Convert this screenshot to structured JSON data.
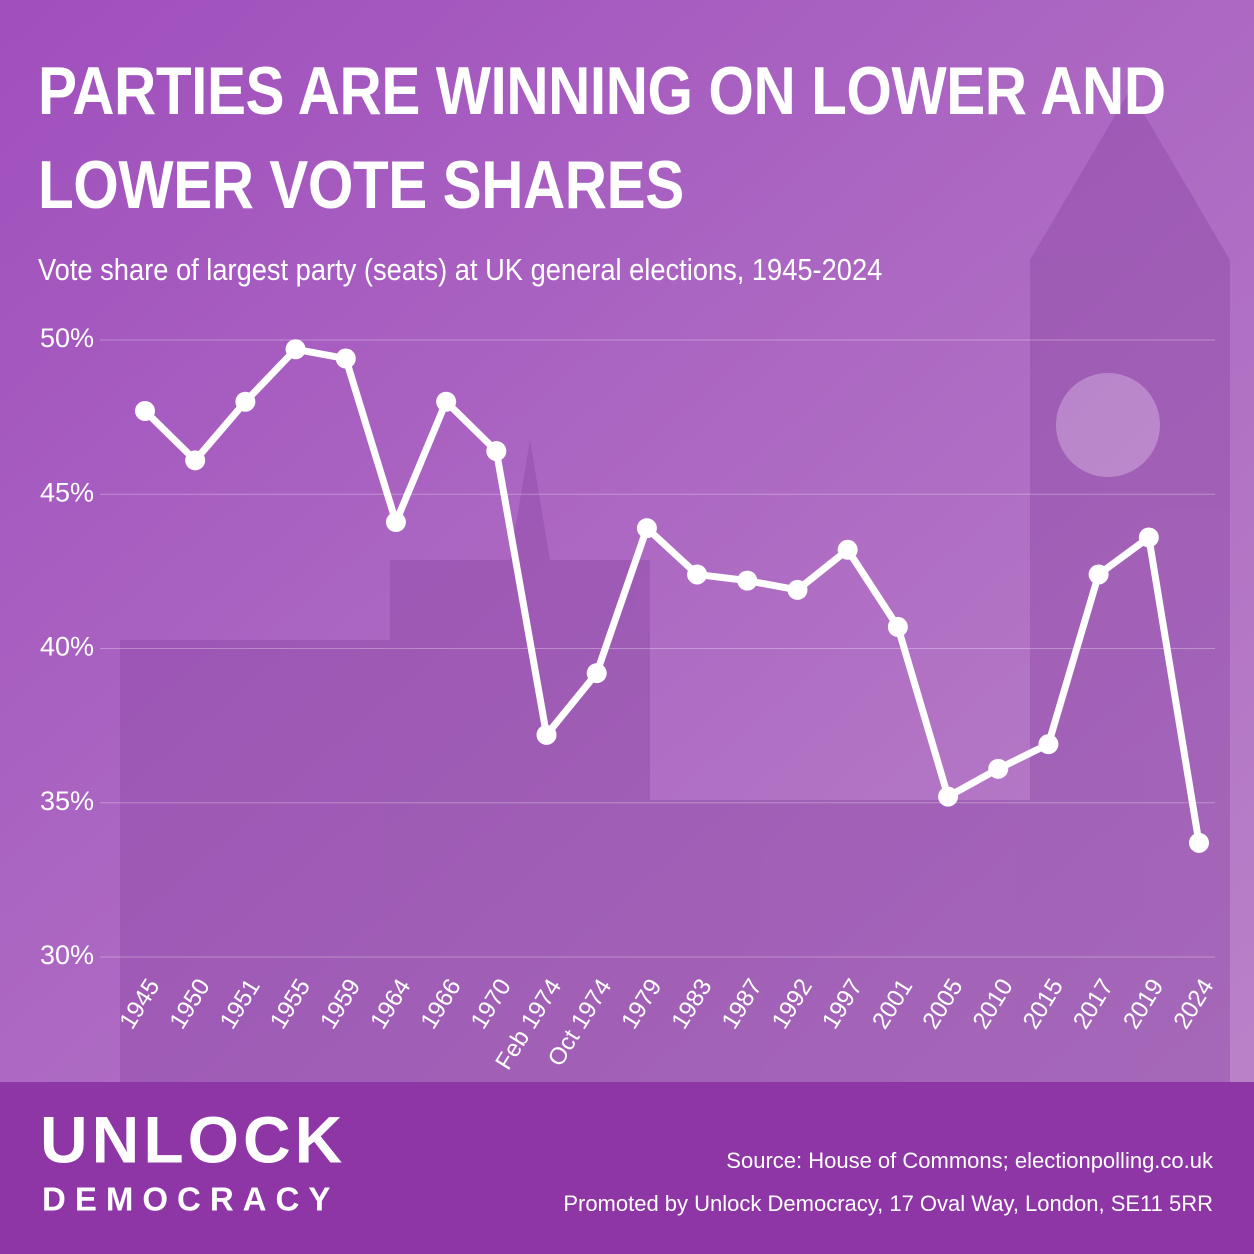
{
  "chart_data": {
    "type": "line",
    "title": "PARTIES ARE WINNING ON LOWER AND LOWER VOTE SHARES",
    "subtitle": "Vote share of largest party (seats) at UK general elections, 1945-2024",
    "categories": [
      "1945",
      "1950",
      "1951",
      "1955",
      "1959",
      "1964",
      "1966",
      "1970",
      "Feb 1974",
      "Oct 1974",
      "1979",
      "1983",
      "1987",
      "1992",
      "1997",
      "2001",
      "2005",
      "2010",
      "2015",
      "2017",
      "2019",
      "2024"
    ],
    "values": [
      47.7,
      46.1,
      48.0,
      49.7,
      49.4,
      44.1,
      48.0,
      46.4,
      37.2,
      39.2,
      43.9,
      42.4,
      42.2,
      41.9,
      43.2,
      40.7,
      35.2,
      36.1,
      36.9,
      42.4,
      43.6,
      33.7
    ],
    "color": "#ffffff",
    "ylim": [
      30,
      50
    ],
    "yticks": [
      {
        "value": 30,
        "label": "30%"
      },
      {
        "value": 35,
        "label": "35%"
      },
      {
        "value": 40,
        "label": "40%"
      },
      {
        "value": 45,
        "label": "45%"
      },
      {
        "value": 50,
        "label": "50%"
      }
    ],
    "grid": true
  },
  "footer": {
    "logo": [
      "UNLOCK",
      "DEMOCRACY"
    ],
    "source": "Source: House of Commons; electionpolling.co.uk",
    "promoted_by": "Promoted by Unlock Democracy, 17 Oval Way, London, SE11 5RR"
  }
}
